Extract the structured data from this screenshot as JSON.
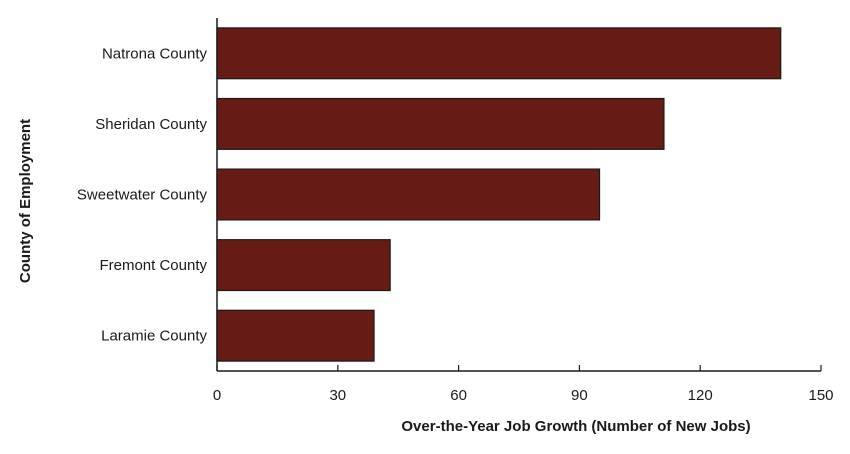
{
  "chart_data": {
    "type": "bar",
    "orientation": "horizontal",
    "categories": [
      "Natrona County",
      "Sheridan County",
      "Sweetwater County",
      "Fremont County",
      "Laramie County"
    ],
    "values": [
      140,
      111,
      95,
      43,
      39
    ],
    "xlabel": "Over-the-Year Job Growth (Number of New Jobs)",
    "ylabel": "County of Employment",
    "xlim": [
      0,
      150
    ],
    "xticks": [
      0,
      30,
      60,
      90,
      120,
      150
    ],
    "grid": false,
    "bar_color": "#661c15",
    "bar_edge_color": "#1a1a1a"
  }
}
